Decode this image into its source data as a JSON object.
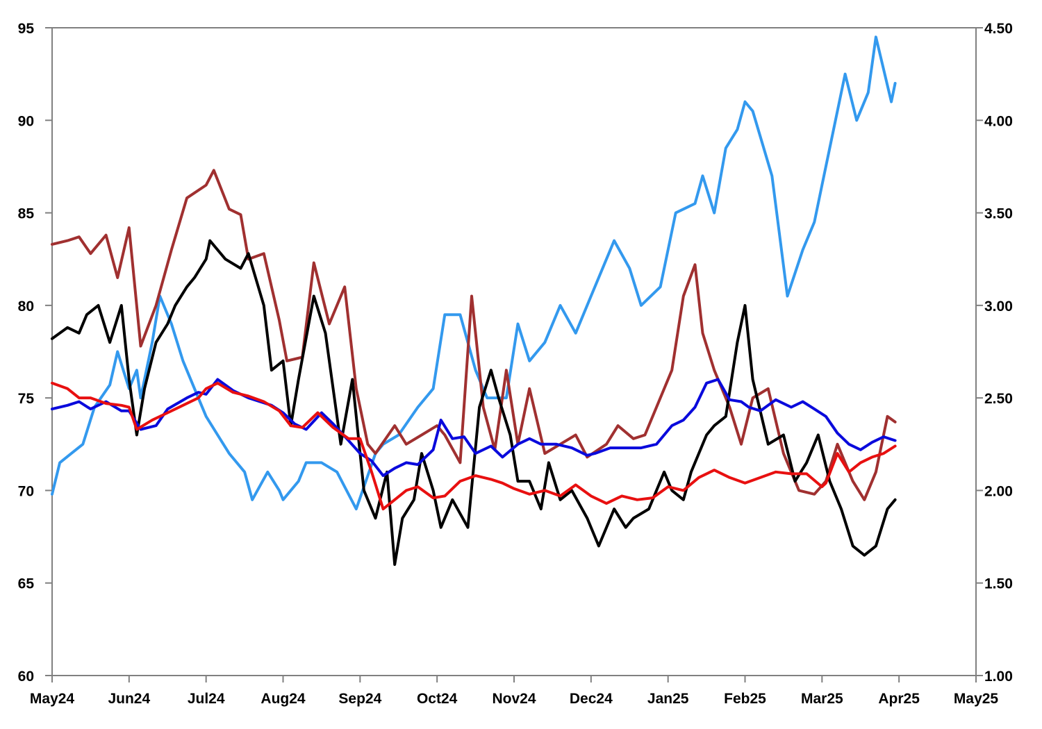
{
  "chart_data": {
    "type": "line",
    "title": "",
    "xlabel": "",
    "ylabel": "",
    "x_tick_labels": [
      "May24",
      "Jun24",
      "Jul24",
      "Aug24",
      "Sep24",
      "Oct24",
      "Nov24",
      "Dec24",
      "Jan25",
      "Feb25",
      "Mar25",
      "Apr25",
      "May25"
    ],
    "x_range_months": [
      0,
      12
    ],
    "y_left": {
      "ylim": [
        60,
        95
      ],
      "ticks": [
        60,
        65,
        70,
        75,
        80,
        85,
        90,
        95
      ],
      "tick_labels": [
        "60",
        "65",
        "70",
        "75",
        "80",
        "85",
        "90",
        "95"
      ]
    },
    "y_right": {
      "ylim": [
        1.0,
        4.5
      ],
      "ticks": [
        1.0,
        1.5,
        2.0,
        2.5,
        3.0,
        3.5,
        4.0,
        4.5
      ],
      "tick_labels": [
        "1.00",
        "1.50",
        "2.00",
        "2.50",
        "3.00",
        "3.50",
        "4.00",
        "4.50"
      ]
    },
    "grid": false,
    "legend": "none",
    "series": [
      {
        "name": "Light blue series (right axis)",
        "axis": "right",
        "color": "#3399ee",
        "x": [
          0,
          0.1,
          0.25,
          0.4,
          0.55,
          0.75,
          0.85,
          1.0,
          1.1,
          1.15,
          1.3,
          1.4,
          1.55,
          1.7,
          1.85,
          2.0,
          2.15,
          2.3,
          2.5,
          2.6,
          2.8,
          2.95,
          3.0,
          3.2,
          3.3,
          3.5,
          3.7,
          3.95,
          4.2,
          4.3,
          4.5,
          4.75,
          4.95,
          5.1,
          5.3,
          5.5,
          5.65,
          5.9,
          6.05,
          6.2,
          6.4,
          6.6,
          6.8,
          7.0,
          7.3,
          7.5,
          7.65,
          7.9,
          8.1,
          8.35,
          8.45,
          8.6,
          8.75,
          8.9,
          9.0,
          9.1,
          9.35,
          9.55,
          9.75,
          9.9,
          10.0,
          10.1,
          10.3,
          10.45,
          10.6,
          10.7,
          10.9,
          10.95
        ],
        "values": [
          1.98,
          2.15,
          2.2,
          2.25,
          2.45,
          2.57,
          2.75,
          2.55,
          2.65,
          2.5,
          2.8,
          3.05,
          2.9,
          2.7,
          2.55,
          2.4,
          2.3,
          2.2,
          2.1,
          1.95,
          2.1,
          2.0,
          1.95,
          2.05,
          2.15,
          2.15,
          2.1,
          1.9,
          2.2,
          2.25,
          2.3,
          2.45,
          2.55,
          2.95,
          2.95,
          2.65,
          2.5,
          2.5,
          2.9,
          2.7,
          2.8,
          3.0,
          2.85,
          3.05,
          3.35,
          3.2,
          3.0,
          3.1,
          3.5,
          3.55,
          3.7,
          3.5,
          3.85,
          3.95,
          4.1,
          4.05,
          3.7,
          3.05,
          3.3,
          3.45,
          3.65,
          3.85,
          4.25,
          4.0,
          4.15,
          4.45,
          4.1,
          4.2
        ]
      },
      {
        "name": "Brown series",
        "axis": "left",
        "color": "#a03030",
        "x": [
          0,
          0.2,
          0.35,
          0.5,
          0.7,
          0.85,
          1.0,
          1.15,
          1.35,
          1.55,
          1.75,
          2.0,
          2.1,
          2.3,
          2.45,
          2.55,
          2.75,
          2.95,
          3.05,
          3.25,
          3.4,
          3.6,
          3.8,
          3.95,
          4.1,
          4.2,
          4.45,
          4.6,
          4.8,
          5.0,
          5.1,
          5.3,
          5.45,
          5.6,
          5.75,
          5.9,
          6.05,
          6.2,
          6.4,
          6.6,
          6.8,
          6.95,
          7.2,
          7.35,
          7.55,
          7.7,
          7.9,
          8.05,
          8.2,
          8.35,
          8.45,
          8.6,
          8.7,
          8.8,
          8.95,
          9.1,
          9.3,
          9.5,
          9.7,
          9.9,
          10.05,
          10.2,
          10.4,
          10.55,
          10.7,
          10.85,
          10.95
        ],
        "values": [
          83.3,
          83.5,
          83.7,
          82.8,
          83.8,
          81.5,
          84.2,
          77.8,
          80.0,
          83.0,
          85.8,
          86.5,
          87.3,
          85.2,
          84.9,
          82.5,
          82.8,
          79.2,
          77.0,
          77.2,
          82.3,
          79.0,
          81.0,
          75.5,
          72.5,
          72.0,
          73.5,
          72.5,
          73.0,
          73.5,
          73.0,
          71.5,
          80.5,
          74.5,
          72.2,
          76.5,
          72.5,
          75.5,
          72.0,
          72.5,
          73.0,
          71.8,
          72.5,
          73.5,
          72.8,
          73.0,
          75.0,
          76.5,
          80.5,
          82.2,
          78.5,
          76.5,
          75.5,
          74.5,
          72.5,
          75.0,
          75.5,
          72.0,
          70.0,
          69.8,
          70.5,
          72.5,
          70.5,
          69.5,
          71.0,
          74.0,
          73.7
        ]
      },
      {
        "name": "Black series",
        "axis": "left",
        "color": "#000000",
        "x": [
          0,
          0.2,
          0.35,
          0.45,
          0.6,
          0.75,
          0.9,
          1.0,
          1.1,
          1.2,
          1.35,
          1.5,
          1.6,
          1.75,
          1.85,
          2.0,
          2.05,
          2.25,
          2.45,
          2.55,
          2.75,
          2.85,
          3.0,
          3.1,
          3.2,
          3.4,
          3.55,
          3.75,
          3.9,
          4.05,
          4.2,
          4.35,
          4.45,
          4.55,
          4.7,
          4.8,
          4.95,
          5.05,
          5.2,
          5.4,
          5.55,
          5.7,
          5.8,
          5.95,
          6.05,
          6.2,
          6.35,
          6.45,
          6.6,
          6.75,
          6.95,
          7.1,
          7.3,
          7.45,
          7.55,
          7.75,
          7.95,
          8.05,
          8.2,
          8.3,
          8.4,
          8.5,
          8.6,
          8.75,
          8.9,
          9.0,
          9.1,
          9.3,
          9.5,
          9.65,
          9.8,
          9.95,
          10.1,
          10.25,
          10.4,
          10.55,
          10.7,
          10.85,
          10.95
        ],
        "values": [
          78.2,
          78.8,
          78.5,
          79.5,
          80.0,
          78.0,
          80.0,
          76.0,
          73.0,
          75.5,
          78.0,
          79.0,
          80.0,
          81.0,
          81.5,
          82.5,
          83.5,
          82.5,
          82.0,
          82.8,
          80.0,
          76.5,
          77.0,
          73.5,
          76.0,
          80.5,
          78.5,
          72.5,
          76.0,
          70.0,
          68.5,
          71.0,
          66.0,
          68.5,
          69.5,
          72.0,
          70.0,
          68.0,
          69.5,
          68.0,
          74.5,
          76.5,
          75.0,
          73.0,
          70.5,
          70.5,
          69.0,
          71.5,
          69.5,
          70.0,
          68.5,
          67.0,
          69.0,
          68.0,
          68.5,
          69.0,
          71.0,
          70.0,
          69.5,
          71.0,
          72.0,
          73.0,
          73.5,
          74.0,
          78.0,
          80.0,
          76.0,
          72.5,
          73.0,
          70.5,
          71.5,
          73.0,
          70.5,
          69.0,
          67.0,
          66.5,
          67.0,
          69.0,
          69.5
        ]
      },
      {
        "name": "Blue series",
        "axis": "left",
        "color": "#0a0adc",
        "x": [
          0,
          0.2,
          0.35,
          0.5,
          0.7,
          0.9,
          1.0,
          1.15,
          1.35,
          1.5,
          1.75,
          1.9,
          2.0,
          2.15,
          2.35,
          2.55,
          2.7,
          2.85,
          3.0,
          3.15,
          3.3,
          3.5,
          3.65,
          3.85,
          4.0,
          4.15,
          4.3,
          4.45,
          4.6,
          4.75,
          4.95,
          5.05,
          5.2,
          5.35,
          5.5,
          5.7,
          5.85,
          6.05,
          6.2,
          6.35,
          6.55,
          6.75,
          6.95,
          7.05,
          7.25,
          7.45,
          7.65,
          7.85,
          8.05,
          8.2,
          8.35,
          8.5,
          8.65,
          8.8,
          8.95,
          9.05,
          9.2,
          9.4,
          9.6,
          9.75,
          9.9,
          10.05,
          10.2,
          10.35,
          10.5,
          10.65,
          10.8,
          10.95
        ],
        "values": [
          74.4,
          74.6,
          74.8,
          74.4,
          74.8,
          74.3,
          74.3,
          73.3,
          73.5,
          74.4,
          75.0,
          75.3,
          75.2,
          76.0,
          75.4,
          75.0,
          74.8,
          74.6,
          74.2,
          73.6,
          73.3,
          74.2,
          73.6,
          72.7,
          72.0,
          71.6,
          70.8,
          71.2,
          71.5,
          71.4,
          72.2,
          73.8,
          72.8,
          72.9,
          72.0,
          72.4,
          71.8,
          72.5,
          72.8,
          72.5,
          72.5,
          72.3,
          71.9,
          72.0,
          72.3,
          72.3,
          72.3,
          72.5,
          73.5,
          73.8,
          74.5,
          75.8,
          76.0,
          74.9,
          74.8,
          74.5,
          74.3,
          74.9,
          74.5,
          74.8,
          74.4,
          74.0,
          73.1,
          72.5,
          72.2,
          72.6,
          72.9,
          72.7
        ]
      },
      {
        "name": "Red series",
        "axis": "left",
        "color": "#e81010",
        "x": [
          0,
          0.2,
          0.35,
          0.5,
          0.7,
          0.9,
          1.0,
          1.1,
          1.3,
          1.5,
          1.7,
          1.9,
          2.0,
          2.15,
          2.35,
          2.55,
          2.75,
          2.95,
          3.1,
          3.25,
          3.45,
          3.65,
          3.85,
          4.0,
          4.15,
          4.3,
          4.45,
          4.6,
          4.75,
          4.95,
          5.1,
          5.3,
          5.5,
          5.7,
          5.85,
          6.0,
          6.2,
          6.4,
          6.6,
          6.8,
          7.0,
          7.2,
          7.4,
          7.6,
          7.8,
          8.0,
          8.2,
          8.4,
          8.6,
          8.8,
          9.0,
          9.2,
          9.4,
          9.6,
          9.8,
          10.0,
          10.05,
          10.2,
          10.35,
          10.5,
          10.65,
          10.8,
          10.95
        ],
        "values": [
          75.8,
          75.5,
          75.0,
          75.0,
          74.7,
          74.6,
          74.5,
          73.3,
          73.8,
          74.2,
          74.6,
          75.0,
          75.5,
          75.8,
          75.3,
          75.1,
          74.8,
          74.3,
          73.5,
          73.4,
          74.2,
          73.4,
          72.8,
          72.8,
          71.0,
          69.0,
          69.5,
          70.0,
          70.2,
          69.6,
          69.7,
          70.5,
          70.8,
          70.6,
          70.4,
          70.1,
          69.8,
          70.0,
          69.7,
          70.3,
          69.7,
          69.3,
          69.7,
          69.5,
          69.6,
          70.2,
          70.0,
          70.7,
          71.1,
          70.7,
          70.4,
          70.7,
          71.0,
          70.9,
          70.9,
          70.2,
          70.4,
          72.0,
          71.0,
          71.5,
          71.8,
          72.0,
          72.4
        ]
      }
    ]
  }
}
